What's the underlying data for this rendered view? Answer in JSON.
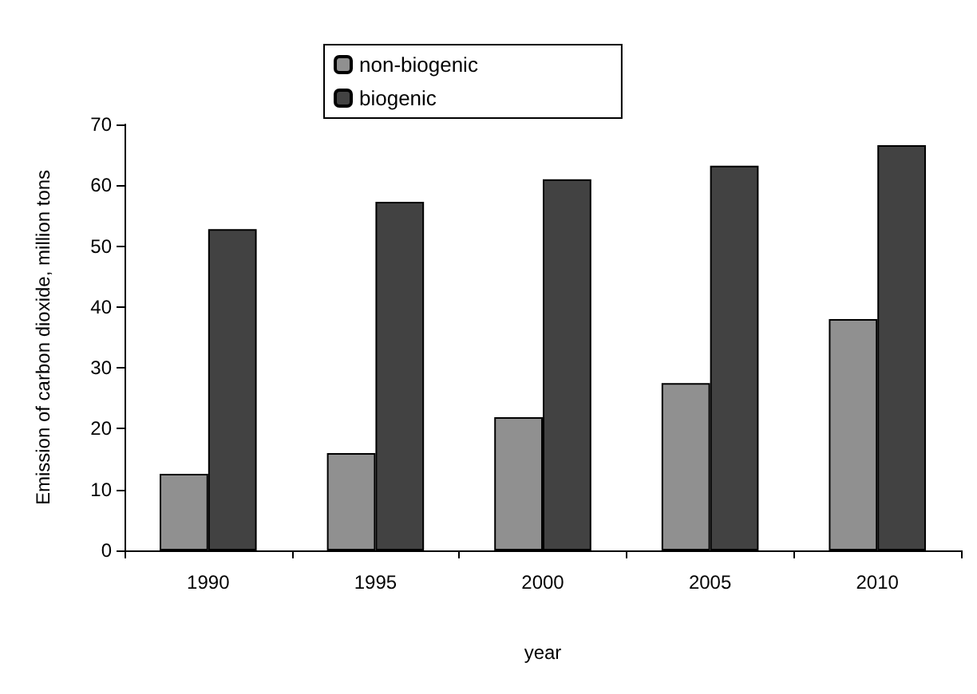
{
  "chart_data": {
    "type": "bar",
    "xlabel": "year",
    "ylabel": "Emission of carbon dioxide, million tons",
    "categories": [
      "1990",
      "1995",
      "2000",
      "2005",
      "2010"
    ],
    "series": [
      {
        "name": "non-biogenic",
        "color": "#909090",
        "values": [
          12.6,
          16.0,
          21.9,
          27.5,
          38.0
        ]
      },
      {
        "name": "biogenic",
        "color": "#424242",
        "values": [
          52.8,
          57.3,
          61.0,
          63.2,
          66.6
        ]
      }
    ],
    "ylim": [
      0,
      70
    ],
    "yticks": [
      0,
      10,
      20,
      30,
      40,
      50,
      60,
      70
    ],
    "grid": false,
    "legend": "top"
  }
}
